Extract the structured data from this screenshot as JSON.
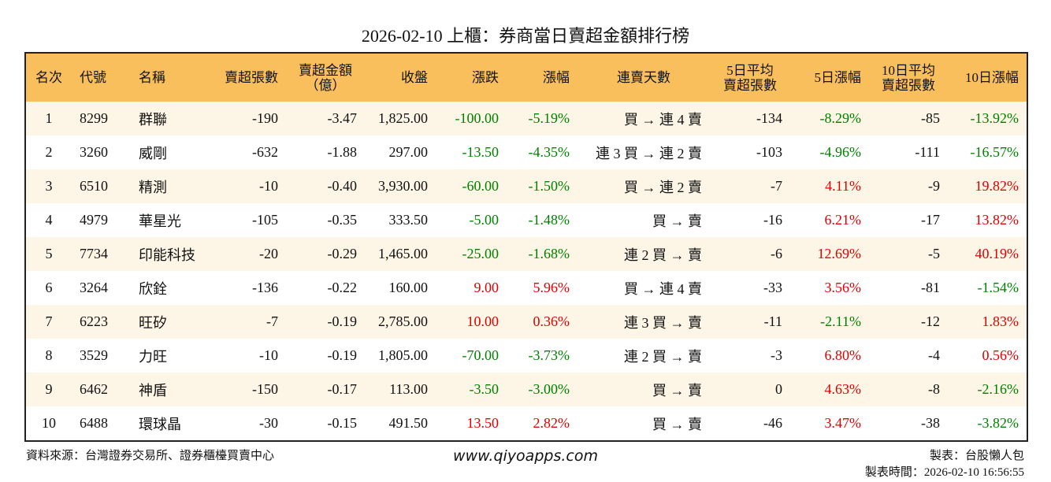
{
  "title": "2026-02-10 上櫃：券商當日賣超金額排行榜",
  "table": {
    "header": [
      "名次",
      "代號",
      "名稱",
      "賣超張數",
      "賣超金額\n（億）",
      "收盤",
      "漲跌",
      "漲幅",
      "連賣天數",
      "5日平均\n賣超張數",
      "5日漲幅",
      "10日平均\n賣超張數",
      "10日漲幅"
    ],
    "rows": [
      [
        "1",
        "8299",
        "群聯",
        "-190",
        "-3.47",
        "1,825.00",
        "-100.00",
        "-5.19%",
        "買 → 連 4 賣",
        "-134",
        "-8.29%",
        "-85",
        "-13.92%"
      ],
      [
        "2",
        "3260",
        "威剛",
        "-632",
        "-1.88",
        "297.00",
        "-13.50",
        "-4.35%",
        "連 3 買 → 連 2 賣",
        "-103",
        "-4.96%",
        "-111",
        "-16.57%"
      ],
      [
        "3",
        "6510",
        "精測",
        "-10",
        "-0.40",
        "3,930.00",
        "-60.00",
        "-1.50%",
        "買 → 連 2 賣",
        "-7",
        "4.11%",
        "-9",
        "19.82%"
      ],
      [
        "4",
        "4979",
        "華星光",
        "-105",
        "-0.35",
        "333.50",
        "-5.00",
        "-1.48%",
        "買 → 賣",
        "-16",
        "6.21%",
        "-17",
        "13.82%"
      ],
      [
        "5",
        "7734",
        "印能科技",
        "-20",
        "-0.29",
        "1,465.00",
        "-25.00",
        "-1.68%",
        "連 2 買 → 賣",
        "-6",
        "12.69%",
        "-5",
        "40.19%"
      ],
      [
        "6",
        "3264",
        "欣銓",
        "-136",
        "-0.22",
        "160.00",
        "9.00",
        "5.96%",
        "買 → 連 4 賣",
        "-33",
        "3.56%",
        "-81",
        "-1.54%"
      ],
      [
        "7",
        "6223",
        "旺矽",
        "-7",
        "-0.19",
        "2,785.00",
        "10.00",
        "0.36%",
        "連 3 買 → 賣",
        "-11",
        "-2.11%",
        "-12",
        "1.83%"
      ],
      [
        "8",
        "3529",
        "力旺",
        "-10",
        "-0.19",
        "1,805.00",
        "-70.00",
        "-3.73%",
        "連 2 買 → 賣",
        "-3",
        "6.80%",
        "-4",
        "0.56%"
      ],
      [
        "9",
        "6462",
        "神盾",
        "-150",
        "-0.17",
        "113.00",
        "-3.50",
        "-3.00%",
        "買 → 賣",
        "0",
        "4.63%",
        "-8",
        "-2.16%"
      ],
      [
        "10",
        "6488",
        "環球晶",
        "-30",
        "-0.15",
        "491.50",
        "13.50",
        "2.82%",
        "買 → 賣",
        "-46",
        "3.47%",
        "-38",
        "-3.82%"
      ]
    ],
    "up_color": "#e00000",
    "down_color": "#008000"
  },
  "footer": {
    "source": "資料來源：台灣證券交易所、證券櫃檯買賣中心",
    "website": "www.qiyoapps.com",
    "maker": "製表：台股懶人包",
    "time": "製表時間：2026-02-10 16:56:55"
  }
}
